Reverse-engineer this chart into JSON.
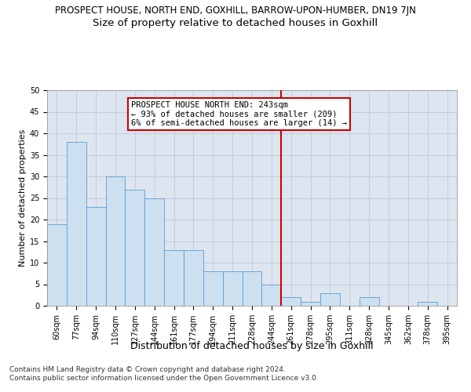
{
  "title": "PROSPECT HOUSE, NORTH END, GOXHILL, BARROW-UPON-HUMBER, DN19 7JN",
  "subtitle": "Size of property relative to detached houses in Goxhill",
  "xlabel": "Distribution of detached houses by size in Goxhill",
  "ylabel": "Number of detached properties",
  "categories": [
    "60sqm",
    "77sqm",
    "94sqm",
    "110sqm",
    "127sqm",
    "144sqm",
    "161sqm",
    "177sqm",
    "194sqm",
    "211sqm",
    "228sqm",
    "244sqm",
    "261sqm",
    "278sqm",
    "295sqm",
    "311sqm",
    "328sqm",
    "345sqm",
    "362sqm",
    "378sqm",
    "395sqm"
  ],
  "values": [
    19,
    38,
    23,
    30,
    27,
    25,
    13,
    13,
    8,
    8,
    8,
    5,
    2,
    1,
    3,
    0,
    2,
    0,
    0,
    1,
    0
  ],
  "bar_color": "#cce0f0",
  "bar_edge_color": "#5b9bd5",
  "vline_x": 11.5,
  "vline_color": "#cc0000",
  "annotation_text": "PROSPECT HOUSE NORTH END: 243sqm\n← 93% of detached houses are smaller (209)\n6% of semi-detached houses are larger (14) →",
  "annotation_box_color": "#ffffff",
  "annotation_edge_color": "#cc0000",
  "grid_color": "#c0c8d8",
  "background_color": "#dde6f0",
  "ylim": [
    0,
    50
  ],
  "yticks": [
    0,
    5,
    10,
    15,
    20,
    25,
    30,
    35,
    40,
    45,
    50
  ],
  "footer": "Contains HM Land Registry data © Crown copyright and database right 2024.\nContains public sector information licensed under the Open Government Licence v3.0.",
  "title_fontsize": 8.5,
  "subtitle_fontsize": 9.5,
  "xlabel_fontsize": 9,
  "ylabel_fontsize": 8,
  "tick_fontsize": 7,
  "annotation_fontsize": 7.5,
  "footer_fontsize": 6.5
}
